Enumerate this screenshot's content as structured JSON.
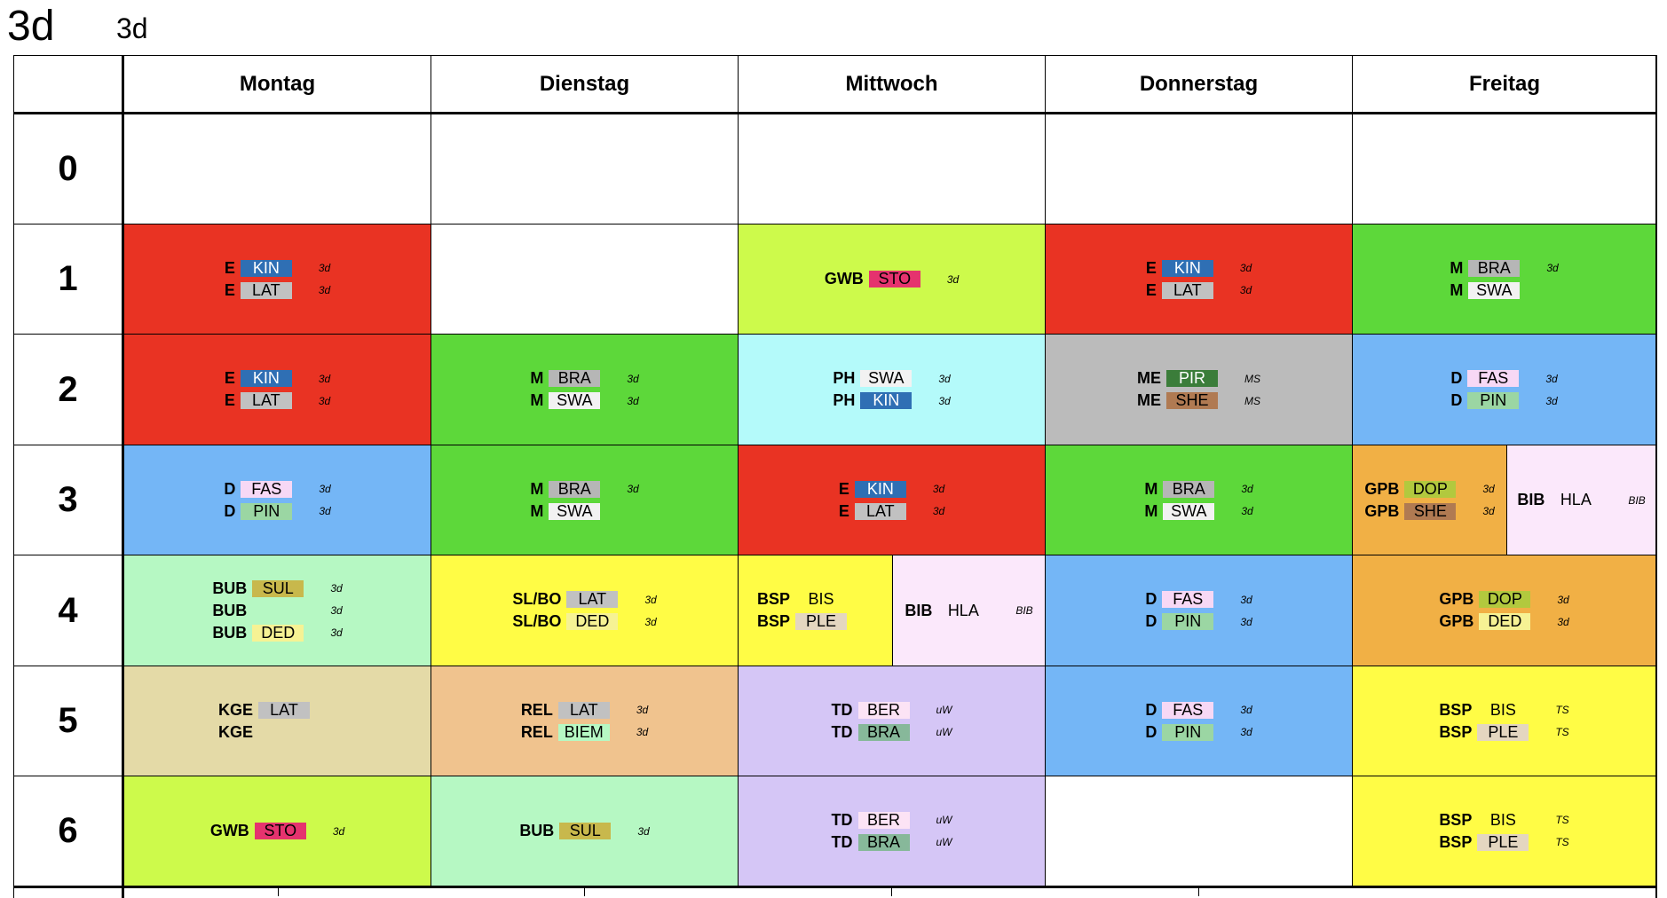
{
  "title": {
    "class_name": "3d",
    "subtitle": "3d"
  },
  "days": [
    "Montag",
    "Dienstag",
    "Mittwoch",
    "Donnerstag",
    "Freitag"
  ],
  "periods": [
    "0",
    "1",
    "2",
    "3",
    "4",
    "5",
    "6"
  ],
  "colors": {
    "E": "#e93323",
    "M": "#5dd83a",
    "D": "#74b6f6",
    "GWB": "#cdfa4b",
    "PH": "#b4fafa",
    "ME": "#bbbbbb",
    "GPB": "#f1b045",
    "BIB": "#fbe8fb",
    "BUB": "#b6f8c3",
    "SL/BO": "#fffc45",
    "BSP": "#fffc45",
    "KGE": "#e4daa7",
    "REL": "#f0c38e",
    "TD": "#d5c6f6",
    "t_KIN": "#2f6fb4",
    "t_LAT": "#c1c1c1",
    "t_BRA": "#b6b6b6",
    "t_SWA": "#f2f2f2",
    "t_STO": "#e5336e",
    "t_PIR": "#3b7d3a",
    "t_SHE": "#b07a52",
    "t_FAS": "#f7d8f5",
    "t_PIN": "#9bd6a3",
    "t_DOP": "#b2c93e",
    "t_SUL": "#c8b84c",
    "t_DED": "#f6f294",
    "t_BIEM": "#b6f8c3",
    "t_BER": "#fce3f5",
    "t_BRA2": "#87b89a",
    "t_PLE": "#e4d6c0"
  },
  "cells": [
    {
      "id": "mo-1",
      "subject": "E",
      "lines": [
        {
          "subject": "E",
          "teacher": "KIN",
          "cls": "3d"
        },
        {
          "subject": "E",
          "teacher": "LAT",
          "cls": "3d"
        }
      ]
    },
    {
      "id": "mi-1",
      "subject": "GWB",
      "lines": [
        {
          "subject": "GWB",
          "teacher": "STO",
          "cls": "3d"
        }
      ]
    },
    {
      "id": "do-1",
      "subject": "E",
      "lines": [
        {
          "subject": "E",
          "teacher": "KIN",
          "cls": "3d"
        },
        {
          "subject": "E",
          "teacher": "LAT",
          "cls": "3d"
        }
      ]
    },
    {
      "id": "fr-1",
      "subject": "M",
      "lines": [
        {
          "subject": "M",
          "teacher": "BRA",
          "cls": "3d"
        },
        {
          "subject": "M",
          "teacher": "SWA",
          "cls": ""
        }
      ]
    },
    {
      "id": "mo-2",
      "subject": "E",
      "lines": [
        {
          "subject": "E",
          "teacher": "KIN",
          "cls": "3d"
        },
        {
          "subject": "E",
          "teacher": "LAT",
          "cls": "3d"
        }
      ]
    },
    {
      "id": "di-2",
      "subject": "M",
      "lines": [
        {
          "subject": "M",
          "teacher": "BRA",
          "cls": "3d"
        },
        {
          "subject": "M",
          "teacher": "SWA",
          "cls": "3d"
        }
      ]
    },
    {
      "id": "mi-2",
      "subject": "PH",
      "lines": [
        {
          "subject": "PH",
          "teacher": "SWA",
          "cls": "3d"
        },
        {
          "subject": "PH",
          "teacher": "KIN",
          "cls": "3d"
        }
      ]
    },
    {
      "id": "do-2",
      "subject": "ME",
      "lines": [
        {
          "subject": "ME",
          "teacher": "PIR",
          "cls": "MS"
        },
        {
          "subject": "ME",
          "teacher": "SHE",
          "cls": "MS"
        }
      ]
    },
    {
      "id": "fr-2",
      "subject": "D",
      "lines": [
        {
          "subject": "D",
          "teacher": "FAS",
          "cls": "3d"
        },
        {
          "subject": "D",
          "teacher": "PIN",
          "cls": "3d"
        }
      ]
    },
    {
      "id": "mo-3",
      "subject": "D",
      "lines": [
        {
          "subject": "D",
          "teacher": "FAS",
          "cls": "3d"
        },
        {
          "subject": "D",
          "teacher": "PIN",
          "cls": "3d"
        }
      ]
    },
    {
      "id": "di-3",
      "subject": "M",
      "lines": [
        {
          "subject": "M",
          "teacher": "BRA",
          "cls": "3d"
        },
        {
          "subject": "M",
          "teacher": "SWA",
          "cls": ""
        }
      ]
    },
    {
      "id": "mi-3",
      "subject": "E",
      "lines": [
        {
          "subject": "E",
          "teacher": "KIN",
          "cls": "3d"
        },
        {
          "subject": "E",
          "teacher": "LAT",
          "cls": "3d"
        }
      ]
    },
    {
      "id": "do-3",
      "subject": "M",
      "lines": [
        {
          "subject": "M",
          "teacher": "BRA",
          "cls": "3d"
        },
        {
          "subject": "M",
          "teacher": "SWA",
          "cls": "3d"
        }
      ]
    },
    {
      "id": "fr-3a",
      "subject": "GPB",
      "lines": [
        {
          "subject": "GPB",
          "teacher": "DOP",
          "cls": "3d"
        },
        {
          "subject": "GPB",
          "teacher": "SHE",
          "cls": "3d"
        }
      ]
    },
    {
      "id": "fr-3b",
      "subject": "BIB",
      "lines": [
        {
          "subject": "BIB",
          "teacher": "HLA",
          "cls": "BIB"
        }
      ]
    },
    {
      "id": "mo-4",
      "subject": "BUB",
      "lines": [
        {
          "subject": "BUB",
          "teacher": "SUL",
          "cls": "3d"
        },
        {
          "subject": "BUB",
          "teacher": "",
          "cls": "3d"
        },
        {
          "subject": "BUB",
          "teacher": "DED",
          "cls": "3d"
        }
      ]
    },
    {
      "id": "di-4",
      "subject": "SL/BO",
      "lines": [
        {
          "subject": "SL/BO",
          "teacher": "LAT",
          "cls": "3d"
        },
        {
          "subject": "SL/BO",
          "teacher": "DED",
          "cls": "3d"
        }
      ]
    },
    {
      "id": "mi-4a",
      "subject": "BSP",
      "lines": [
        {
          "subject": "BSP",
          "teacher": "BIS",
          "cls": ""
        },
        {
          "subject": "BSP",
          "teacher": "PLE",
          "cls": ""
        }
      ]
    },
    {
      "id": "mi-4b",
      "subject": "BIB",
      "lines": [
        {
          "subject": "BIB",
          "teacher": "HLA",
          "cls": "BIB"
        }
      ]
    },
    {
      "id": "do-4",
      "subject": "D",
      "lines": [
        {
          "subject": "D",
          "teacher": "FAS",
          "cls": "3d"
        },
        {
          "subject": "D",
          "teacher": "PIN",
          "cls": "3d"
        }
      ]
    },
    {
      "id": "fr-4",
      "subject": "GPB",
      "lines": [
        {
          "subject": "GPB",
          "teacher": "DOP",
          "cls": "3d"
        },
        {
          "subject": "GPB",
          "teacher": "DED",
          "cls": "3d"
        }
      ]
    },
    {
      "id": "mo-5",
      "subject": "KGE",
      "lines": [
        {
          "subject": "KGE",
          "teacher": "LAT",
          "cls": ""
        },
        {
          "subject": "KGE",
          "teacher": "",
          "cls": ""
        }
      ]
    },
    {
      "id": "di-5",
      "subject": "REL",
      "lines": [
        {
          "subject": "REL",
          "teacher": "LAT",
          "cls": "3d"
        },
        {
          "subject": "REL",
          "teacher": "BIEM",
          "cls": "3d"
        }
      ]
    },
    {
      "id": "mi-5",
      "subject": "TD",
      "lines": [
        {
          "subject": "TD",
          "teacher": "BER",
          "cls": "uW"
        },
        {
          "subject": "TD",
          "teacher": "BRA",
          "cls": "uW"
        }
      ]
    },
    {
      "id": "do-5",
      "subject": "D",
      "lines": [
        {
          "subject": "D",
          "teacher": "FAS",
          "cls": "3d"
        },
        {
          "subject": "D",
          "teacher": "PIN",
          "cls": "3d"
        }
      ]
    },
    {
      "id": "fr-5",
      "subject": "BSP",
      "lines": [
        {
          "subject": "BSP",
          "teacher": "BIS",
          "cls": "TS"
        },
        {
          "subject": "BSP",
          "teacher": "PLE",
          "cls": "TS"
        }
      ]
    },
    {
      "id": "mo-6",
      "subject": "GWB",
      "lines": [
        {
          "subject": "GWB",
          "teacher": "STO",
          "cls": "3d"
        }
      ]
    },
    {
      "id": "di-6",
      "subject": "BUB",
      "lines": [
        {
          "subject": "BUB",
          "teacher": "SUL",
          "cls": "3d"
        }
      ]
    },
    {
      "id": "mi-6",
      "subject": "TD",
      "lines": [
        {
          "subject": "TD",
          "teacher": "BER",
          "cls": "uW"
        },
        {
          "subject": "TD",
          "teacher": "BRA",
          "cls": "uW"
        }
      ]
    },
    {
      "id": "fr-6",
      "subject": "BSP",
      "lines": [
        {
          "subject": "BSP",
          "teacher": "BIS",
          "cls": "TS"
        },
        {
          "subject": "BSP",
          "teacher": "PLE",
          "cls": "TS"
        }
      ]
    }
  ]
}
